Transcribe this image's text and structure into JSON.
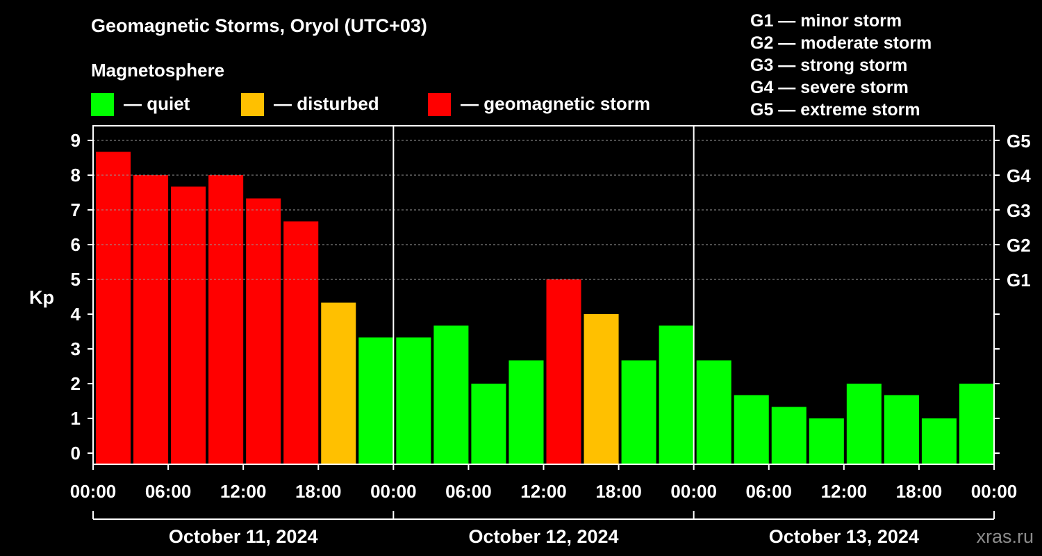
{
  "title": "Geomagnetic Storms, Oryol (UTC+03)",
  "subtitle": "Magnetosphere",
  "legend": [
    {
      "color": "#00ff00",
      "label": "— quiet"
    },
    {
      "color": "#ffc000",
      "label": "— disturbed"
    },
    {
      "color": "#ff0000",
      "label": "— geomagnetic storm"
    }
  ],
  "g_levels": [
    "G1 — minor storm",
    "G2 — moderate storm",
    "G3 — strong storm",
    "G4 — severe storm",
    "G5 — extreme storm"
  ],
  "watermark": "xras.ru",
  "chart_data": {
    "type": "bar",
    "ylabel": "Kp",
    "ylim": [
      0,
      9
    ],
    "yticks": [
      "0",
      "1",
      "2",
      "3",
      "4",
      "5",
      "6",
      "7",
      "8",
      "9"
    ],
    "right_ticks": [
      {
        "value": 5,
        "label": "G1"
      },
      {
        "value": 6,
        "label": "G2"
      },
      {
        "value": 7,
        "label": "G3"
      },
      {
        "value": 8,
        "label": "G4"
      },
      {
        "value": 9,
        "label": "G5"
      }
    ],
    "xtick_labels": [
      "00:00",
      "06:00",
      "12:00",
      "18:00",
      "00:00",
      "06:00",
      "12:00",
      "18:00",
      "00:00",
      "06:00",
      "12:00",
      "18:00",
      "00:00"
    ],
    "days": [
      "October 11, 2024",
      "October 12, 2024",
      "October 13, 2024"
    ],
    "interval_hours": 3,
    "values": [
      8.67,
      8.0,
      7.67,
      8.0,
      7.33,
      6.67,
      4.33,
      3.33,
      3.33,
      3.67,
      2.0,
      2.67,
      5.0,
      4.0,
      2.67,
      3.67,
      2.67,
      1.67,
      1.33,
      1.0,
      2.0,
      1.67,
      1.0,
      2.0
    ],
    "bar_colors": [
      "#ff0000",
      "#ff0000",
      "#ff0000",
      "#ff0000",
      "#ff0000",
      "#ff0000",
      "#ffc000",
      "#00ff00",
      "#00ff00",
      "#00ff00",
      "#00ff00",
      "#00ff00",
      "#ff0000",
      "#ffc000",
      "#00ff00",
      "#00ff00",
      "#00ff00",
      "#00ff00",
      "#00ff00",
      "#00ff00",
      "#00ff00",
      "#00ff00",
      "#00ff00",
      "#00ff00"
    ]
  }
}
